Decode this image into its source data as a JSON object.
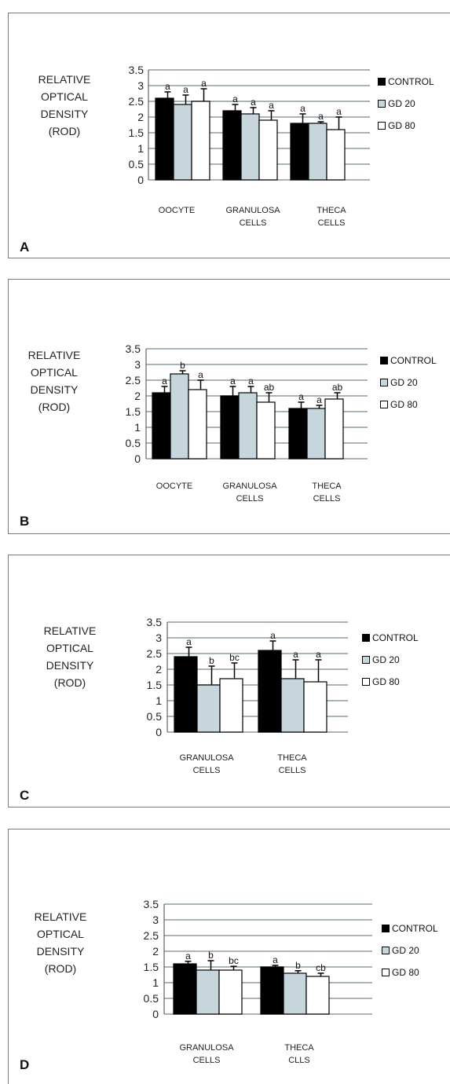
{
  "chart_data": [
    {
      "panel": "A",
      "type": "bar",
      "ylabel": "RELATIVE\nOPTICAL\nDENSITY\n(ROD)",
      "ylim": [
        0,
        3.5
      ],
      "yticks": [
        "0",
        "0.5",
        "1",
        "1.5",
        "2",
        "2.5",
        "3",
        "3.5"
      ],
      "categories": [
        "OOCYTE",
        "GRANULOSA\nCELLS",
        "THECA\nCELLS"
      ],
      "series": [
        {
          "name": "CONTROL",
          "values": [
            2.6,
            2.2,
            1.8
          ],
          "errors": [
            0.2,
            0.2,
            0.3
          ],
          "letters": [
            "a",
            "a",
            "a"
          ]
        },
        {
          "name": "GD 20",
          "values": [
            2.4,
            2.1,
            1.8
          ],
          "errors": [
            0.3,
            0.2,
            0.05
          ],
          "letters": [
            "a",
            "a",
            "a"
          ]
        },
        {
          "name": "GD 80",
          "values": [
            2.5,
            1.9,
            1.6
          ],
          "errors": [
            0.4,
            0.3,
            0.4
          ],
          "letters": [
            "a",
            "a",
            "a"
          ]
        }
      ]
    },
    {
      "panel": "B",
      "type": "bar",
      "ylabel": "RELATIVE\nOPTICAL\nDENSITY\n(ROD)",
      "ylim": [
        0,
        3.5
      ],
      "yticks": [
        "0",
        "0.5",
        "1",
        "1.5",
        "2",
        "2.5",
        "3",
        "3.5"
      ],
      "categories": [
        "OOCYTE",
        "GRANULOSA\nCELLS",
        "THECA\nCELLS"
      ],
      "series": [
        {
          "name": "CONTROL",
          "values": [
            2.1,
            2.0,
            1.6
          ],
          "errors": [
            0.2,
            0.3,
            0.2
          ],
          "letters": [
            "a",
            "a",
            "a"
          ]
        },
        {
          "name": "GD 20",
          "values": [
            2.7,
            2.1,
            1.6
          ],
          "errors": [
            0.1,
            0.2,
            0.1
          ],
          "letters": [
            "b",
            "a",
            "a"
          ]
        },
        {
          "name": "GD 80",
          "values": [
            2.2,
            1.8,
            1.9
          ],
          "errors": [
            0.3,
            0.3,
            0.2
          ],
          "letters": [
            "a",
            "ab",
            "ab"
          ]
        }
      ]
    },
    {
      "panel": "C",
      "type": "bar",
      "ylabel": "RELATIVE\nOPTICAL\nDENSITY\n(ROD)",
      "ylim": [
        0,
        3.5
      ],
      "yticks": [
        "0",
        "0.5",
        "1",
        "1.5",
        "2",
        "2.5",
        "3",
        "3.5"
      ],
      "categories": [
        "GRANULOSA\nCELLS",
        "THECA\nCELLS"
      ],
      "series": [
        {
          "name": "CONTROL",
          "values": [
            2.4,
            2.6
          ],
          "errors": [
            0.3,
            0.3
          ],
          "letters": [
            "a",
            "a"
          ]
        },
        {
          "name": "GD 20",
          "values": [
            1.5,
            1.7
          ],
          "errors": [
            0.6,
            0.6
          ],
          "letters": [
            "b",
            "a"
          ]
        },
        {
          "name": "GD 80",
          "values": [
            1.7,
            1.6
          ],
          "errors": [
            0.5,
            0.7
          ],
          "letters": [
            "bc",
            "a"
          ]
        }
      ]
    },
    {
      "panel": "D",
      "type": "bar",
      "ylabel": "RELATIVE\nOPTICAL\nDENSITY\n(ROD)",
      "ylim": [
        0,
        3.5
      ],
      "yticks": [
        "0",
        "0.5",
        "1",
        "1.5",
        "2",
        "2.5",
        "3",
        "3.5"
      ],
      "categories": [
        "GRANULOSA\nCELLS",
        "THECA\nCLLS"
      ],
      "series": [
        {
          "name": "CONTROL",
          "values": [
            1.6,
            1.5
          ],
          "errors": [
            0.08,
            0.05
          ],
          "letters": [
            "a",
            "a"
          ]
        },
        {
          "name": "GD 20",
          "values": [
            1.4,
            1.3
          ],
          "errors": [
            0.3,
            0.08
          ],
          "letters": [
            "b",
            "b"
          ]
        },
        {
          "name": "GD 80",
          "values": [
            1.4,
            1.2
          ],
          "errors": [
            0.12,
            0.1
          ],
          "letters": [
            "bc",
            "cb"
          ]
        }
      ]
    }
  ],
  "colors": {
    "control": "#000000",
    "gd20": "#c6d6dc",
    "gd80": "#ffffff",
    "grid": "#8a9ba3"
  }
}
